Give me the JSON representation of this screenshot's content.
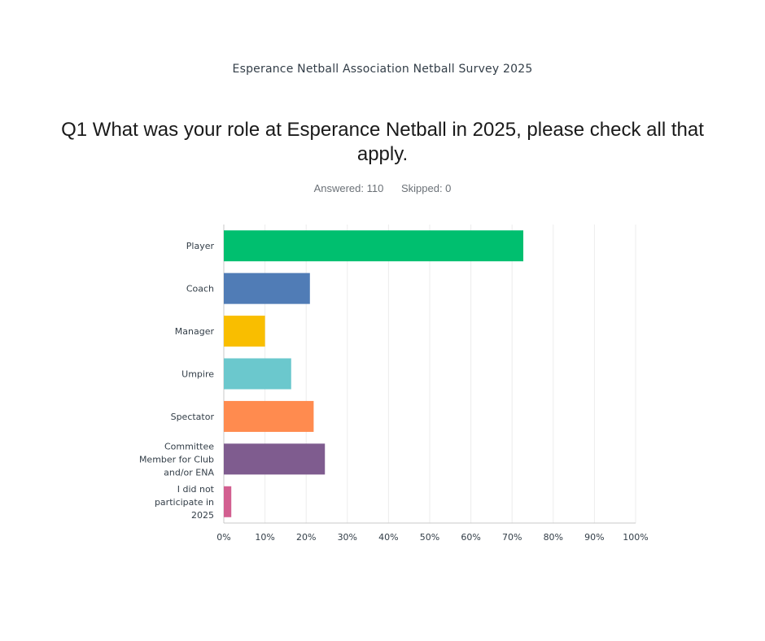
{
  "survey_title": "Esperance Netball Association Netball Survey 2025",
  "question": "Q1 What was your role at Esperance Netball in 2025, please check all that apply.",
  "answered_label": "Answered: 110",
  "skipped_label": "Skipped: 0",
  "chart_data": {
    "type": "bar",
    "orientation": "horizontal",
    "categories": [
      [
        "Player"
      ],
      [
        "Coach"
      ],
      [
        "Manager"
      ],
      [
        "Umpire"
      ],
      [
        "Spectator"
      ],
      [
        "Committee",
        "Member for Club",
        "and/or ENA"
      ],
      [
        "I did not",
        "participate in",
        "2025"
      ]
    ],
    "values": [
      72.73,
      20.91,
      10.0,
      16.36,
      21.82,
      24.55,
      1.82
    ],
    "colors": [
      "#00bf6f",
      "#507cb6",
      "#f9be00",
      "#6bc8cd",
      "#ff8b4f",
      "#7f5c8f",
      "#d25f90"
    ],
    "xlim": [
      0,
      100
    ],
    "xticks": [
      "0%",
      "10%",
      "20%",
      "30%",
      "40%",
      "50%",
      "60%",
      "70%",
      "80%",
      "90%",
      "100%"
    ],
    "grid": true
  }
}
